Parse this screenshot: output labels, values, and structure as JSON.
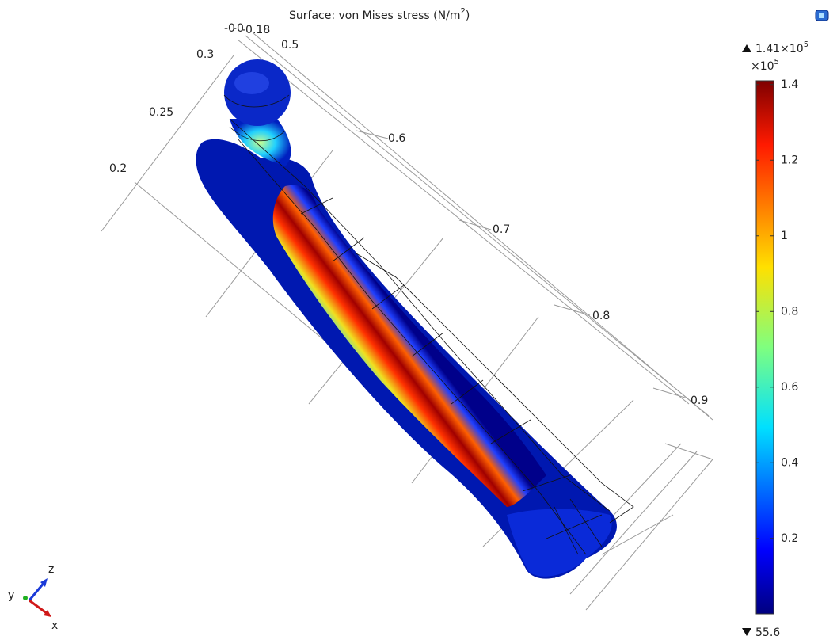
{
  "title": {
    "text": "Surface: von Mises stress (N/m",
    "exponent": "2",
    "close": ")"
  },
  "axis_labels": [
    "-0",
    "-0",
    "-0.18",
    "0.5",
    "0.3",
    "0.25",
    "0.2",
    "0.6",
    "0.7",
    "0.8",
    "0.9"
  ],
  "colorbar": {
    "max": {
      "mantissa": 1.41,
      "times": "×10",
      "exponent": 5
    },
    "multiplier": {
      "times": "×10",
      "exponent": 5
    },
    "ticks": [
      1.4,
      1.2,
      1,
      0.8,
      0.6,
      0.4,
      0.2
    ],
    "min": 55.6
  },
  "triad": {
    "z": "z",
    "y": "y",
    "x": "x"
  }
}
